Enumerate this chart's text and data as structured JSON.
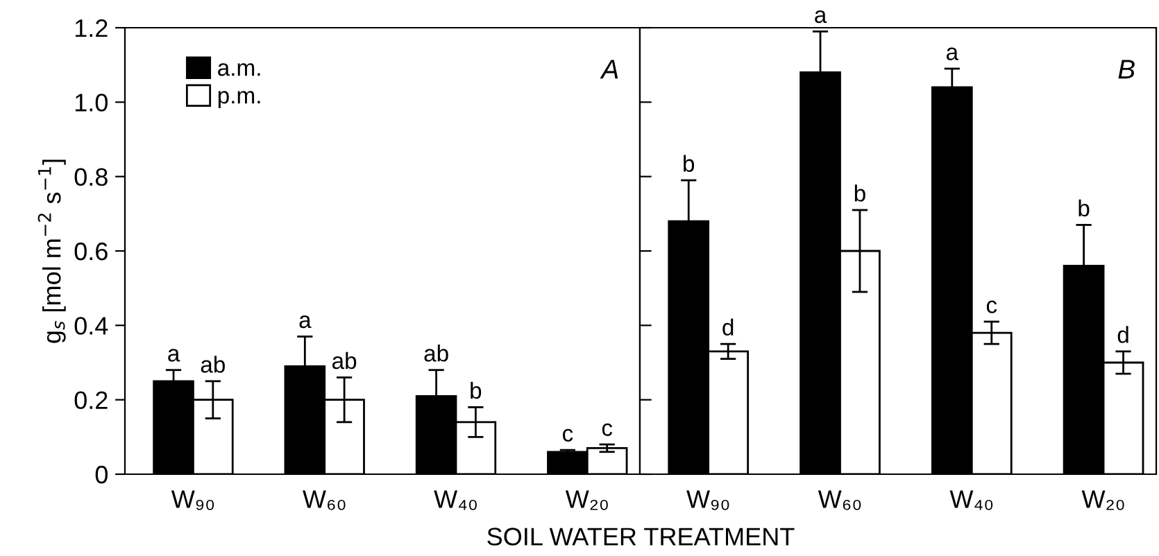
{
  "chart_data": [
    {
      "type": "bar",
      "categories": [
        "W₉₀",
        "W₆₀",
        "W₄₀",
        "W₂₀"
      ],
      "ylabel": "g$_{s}$ [mol m$^{−2}$ s$^{−1}$]",
      "xlabel": "SOIL WATER TREATMENT",
      "ylim": [
        0,
        1.2
      ],
      "yticks": [
        {
          "value": 0,
          "label": "0"
        },
        0.2,
        0.4,
        0.6,
        0.8,
        {
          "value": 1,
          "label": "1.0"
        },
        1.2
      ],
      "legend": "top left",
      "annotations": [
        "A"
      ],
      "series": [
        {
          "name": "a.m.",
          "color": "#000000",
          "values": [
            0.25,
            0.29,
            0.21,
            0.06
          ],
          "errors": [
            0.03,
            0.08,
            0.07,
            0.005
          ],
          "value_labels": [
            "a",
            "a",
            "ab",
            "c"
          ]
        },
        {
          "name": "p.m.",
          "color": "#ffffff",
          "values": [
            0.2,
            0.2,
            0.14,
            0.07
          ],
          "errors": [
            0.05,
            0.06,
            0.04,
            0.01
          ],
          "value_labels": [
            "ab",
            "ab",
            "b",
            "c"
          ]
        }
      ]
    },
    {
      "type": "bar",
      "categories": [
        "W₉₀",
        "W₆₀",
        "W₄₀",
        "W₂₀"
      ],
      "ylim": [
        0,
        1.2
      ],
      "yticks": [
        0,
        0.2,
        0.4,
        0.6,
        0.8,
        1.0,
        1.2
      ],
      "tick_labels": "x",
      "annotations": [
        "B"
      ],
      "series": [
        {
          "color": "#000000",
          "values": [
            0.68,
            1.08,
            1.04,
            0.56
          ],
          "errors": [
            0.11,
            0.11,
            0.05,
            0.11
          ],
          "value_labels": [
            "b",
            "a",
            "a",
            "b"
          ]
        },
        {
          "color": "#ffffff",
          "values": [
            0.33,
            0.6,
            0.38,
            0.3
          ],
          "errors": [
            0.02,
            0.11,
            0.03,
            0.03
          ],
          "value_labels": [
            "d",
            "b",
            "c",
            "d"
          ]
        }
      ]
    }
  ]
}
